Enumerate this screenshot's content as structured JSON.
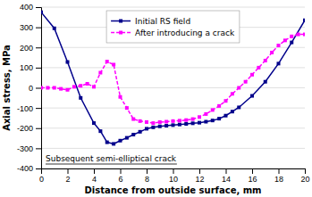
{
  "chart_data": {
    "type": "line",
    "xlabel": "Distance from outside surface, mm",
    "ylabel": "Axial stress, MPa",
    "xlim": [
      0,
      20
    ],
    "ylim": [
      -400,
      400
    ],
    "xticks": [
      0,
      2,
      4,
      6,
      8,
      10,
      12,
      14,
      16,
      18,
      20
    ],
    "yticks": [
      -400,
      -300,
      -200,
      -100,
      0,
      100,
      200,
      300,
      400
    ],
    "grid": true,
    "legend": "upper center",
    "annotations": [
      {
        "text": "Subsequent semi-elliptical crack"
      }
    ],
    "series": [
      {
        "name": "Initial RS field",
        "color": "#00008B",
        "marker": "square",
        "line_style": "solid",
        "x": [
          0,
          1,
          2,
          3,
          4,
          4.5,
          5,
          5.5,
          6,
          6.5,
          7,
          7.5,
          8,
          8.5,
          9,
          9.5,
          10,
          10.5,
          11,
          11.5,
          12,
          12.5,
          13,
          13.5,
          14,
          14.5,
          15,
          16,
          17,
          18,
          19,
          20
        ],
        "values": [
          375,
          295,
          128,
          -50,
          -175,
          -215,
          -270,
          -278,
          -262,
          -248,
          -232,
          -218,
          -203,
          -196,
          -191,
          -188,
          -185,
          -182,
          -179,
          -176,
          -173,
          -168,
          -162,
          -153,
          -138,
          -118,
          -97,
          -40,
          30,
          120,
          225,
          335
        ]
      },
      {
        "name": "After introducing a crack",
        "color": "#FF00FF",
        "marker": "square",
        "line_style": "dashed",
        "x": [
          0,
          0.5,
          1,
          1.5,
          2,
          2.5,
          3,
          3.5,
          4,
          4.5,
          5,
          5.5,
          6,
          6.5,
          7,
          7.5,
          8,
          8.5,
          9,
          9.5,
          10,
          10.5,
          11,
          11.5,
          12,
          12.5,
          13,
          13.5,
          14,
          14.5,
          15,
          15.5,
          16,
          16.5,
          17,
          17.5,
          18,
          18.5,
          19,
          19.5,
          20
        ],
        "values": [
          0,
          0,
          0,
          -5,
          -10,
          5,
          10,
          20,
          5,
          75,
          130,
          115,
          -45,
          -100,
          -155,
          -165,
          -170,
          -175,
          -170,
          -168,
          -165,
          -163,
          -160,
          -155,
          -145,
          -130,
          -110,
          -90,
          -65,
          -30,
          0,
          30,
          65,
          100,
          135,
          175,
          210,
          235,
          255,
          265,
          265
        ]
      }
    ]
  }
}
